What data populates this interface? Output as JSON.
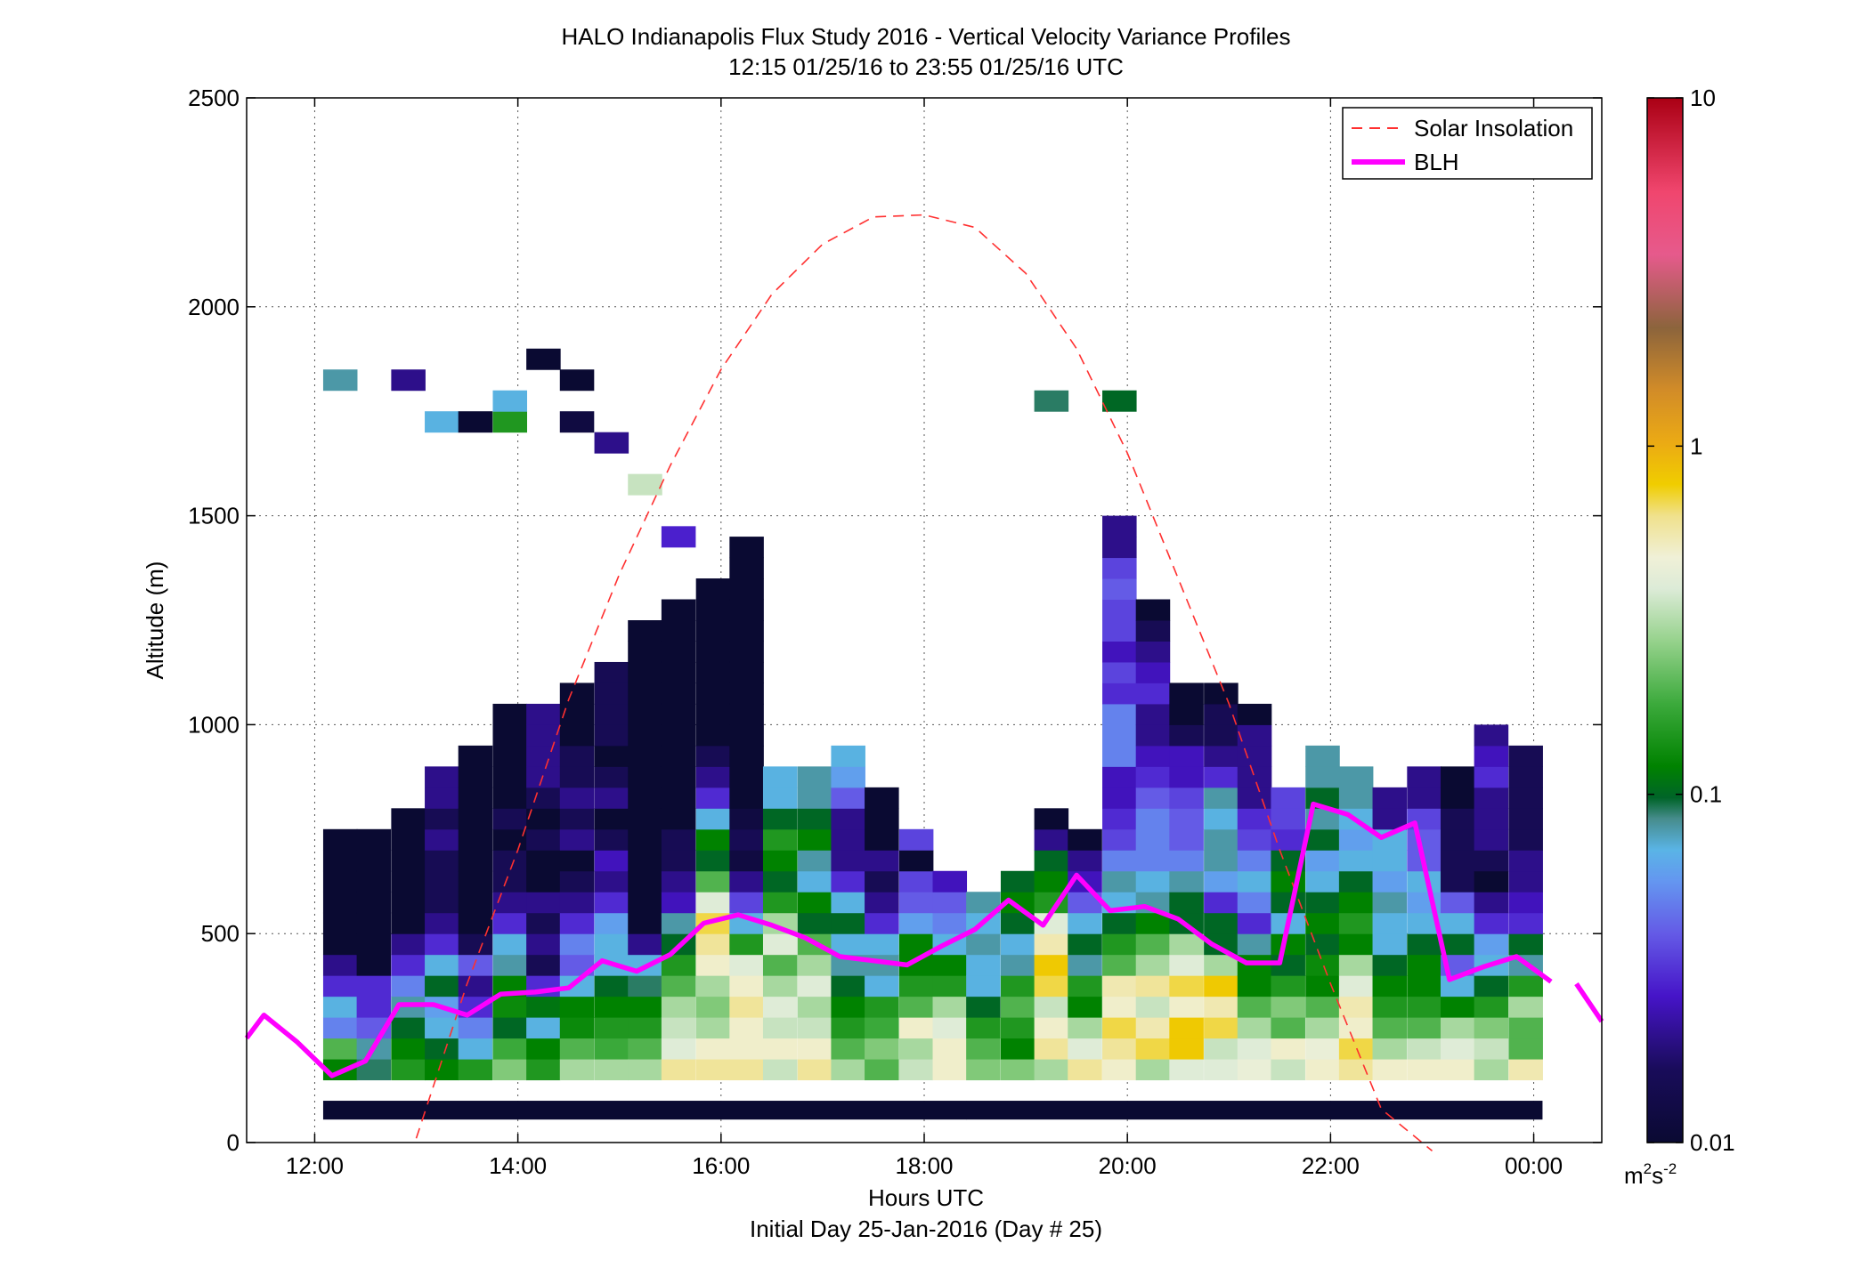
{
  "chart_data": {
    "type": "heatmap",
    "title": "HALO Indianapolis Flux Study 2016 - Vertical Velocity Variance Profiles",
    "subtitle": "12:15 01/25/16 to 23:55 01/25/16  UTC",
    "xlabel": "Hours UTC",
    "xlabel2": "Initial Day 25-Jan-2016 (Day # 25)",
    "ylabel": "Altitude (m)",
    "colorbar_unit": "m²s⁻²",
    "colorbar_unit_base": "m",
    "colorbar_unit_exp1": "2",
    "colorbar_unit_mid": "s",
    "colorbar_unit_exp2": "-2",
    "xlim": [
      11.33,
      24.67
    ],
    "ylim": [
      0,
      2500
    ],
    "xticks": [
      12,
      14,
      16,
      18,
      20,
      22,
      24
    ],
    "xtick_labels": [
      "12:00",
      "14:00",
      "16:00",
      "18:00",
      "20:00",
      "22:00",
      "00:00"
    ],
    "yticks": [
      0,
      500,
      1000,
      1500,
      2000,
      2500
    ],
    "ytick_labels": [
      "0",
      "500",
      "1000",
      "1500",
      "2000",
      "2500"
    ],
    "color_scale": "log",
    "clim": [
      0.01,
      10
    ],
    "cticks": [
      0.01,
      0.1,
      1,
      10
    ],
    "ctick_labels": [
      "0.01",
      "0.1",
      "1",
      "10"
    ],
    "grid": true,
    "legend_position": "top-right",
    "legend": [
      "Solar Insolation",
      "BLH"
    ],
    "bin_width_hours": 0.3333,
    "bin_height_m": 50,
    "columns": [
      {
        "t": 12.25,
        "z0": 150,
        "v": [
          0.12,
          0.2,
          0.05,
          0.07,
          0.03,
          0.02,
          0.01,
          0.01,
          0.01,
          0.01,
          0.01,
          0.01
        ]
      },
      {
        "t": 12.58,
        "z0": 150,
        "v": [
          0.09,
          0.08,
          0.04,
          0.03,
          0.03,
          0.01,
          0.01,
          0.01,
          0.01,
          0.01,
          0.01,
          0.01
        ]
      },
      {
        "t": 12.92,
        "z0": 150,
        "v": [
          0.15,
          0.12,
          0.1,
          0.08,
          0.05,
          0.03,
          0.02,
          0.01,
          0.01,
          0.01,
          0.01,
          0.01,
          0.01
        ]
      },
      {
        "t": 13.25,
        "z0": 150,
        "v": [
          0.12,
          0.1,
          0.07,
          0.06,
          0.1,
          0.07,
          0.03,
          0.02,
          0.015,
          0.015,
          0.015,
          0.02,
          0.015,
          0.02,
          0.02
        ]
      },
      {
        "t": 13.58,
        "z0": 150,
        "v": [
          0.15,
          0.07,
          0.05,
          0.03,
          0.02,
          0.04,
          0.015,
          0.01,
          0.01,
          0.01,
          0.01,
          0.01,
          0.01,
          0.01,
          0.01,
          0.01
        ]
      },
      {
        "t": 13.92,
        "z0": 150,
        "v": [
          0.25,
          0.18,
          0.1,
          0.13,
          0.12,
          0.08,
          0.07,
          0.03,
          0.02,
          0.015,
          0.015,
          0.01,
          0.015,
          0.01,
          0.01,
          0.01,
          0.01,
          0.01
        ]
      },
      {
        "t": 14.25,
        "z0": 150,
        "v": [
          0.15,
          0.12,
          0.07,
          0.11,
          0.03,
          0.015,
          0.02,
          0.015,
          0.02,
          0.01,
          0.01,
          0.015,
          0.01,
          0.015,
          0.02,
          0.02,
          0.02,
          0.02
        ]
      },
      {
        "t": 14.58,
        "z0": 150,
        "v": [
          0.3,
          0.2,
          0.13,
          0.12,
          0.07,
          0.04,
          0.05,
          0.03,
          0.02,
          0.015,
          0.01,
          0.02,
          0.015,
          0.02,
          0.015,
          0.015,
          0.01,
          0.01,
          0.01
        ]
      },
      {
        "t": 14.92,
        "z0": 150,
        "v": [
          0.3,
          0.18,
          0.15,
          0.12,
          0.1,
          0.07,
          0.07,
          0.06,
          0.03,
          0.02,
          0.025,
          0.015,
          0.01,
          0.02,
          0.015,
          0.01,
          0.015,
          0.015,
          0.015,
          0.015
        ]
      },
      {
        "t": 15.25,
        "z0": 150,
        "v": [
          0.3,
          0.2,
          0.15,
          0.12,
          0.09,
          0.07,
          0.02,
          0.01,
          0.01,
          0.01,
          0.01,
          0.01,
          0.01,
          0.01,
          0.01,
          0.01,
          0.01,
          0.01,
          0.01,
          0.01,
          0.01,
          0.01
        ]
      },
      {
        "t": 15.58,
        "z0": 150,
        "v": [
          0.6,
          0.4,
          0.35,
          0.3,
          0.2,
          0.15,
          0.1,
          0.08,
          0.025,
          0.02,
          0.015,
          0.015,
          0.01,
          0.01,
          0.01,
          0.01,
          0.01,
          0.01,
          0.01,
          0.01,
          0.01,
          0.01,
          0.01
        ]
      },
      {
        "t": 15.92,
        "z0": 150,
        "v": [
          0.6,
          0.5,
          0.3,
          0.25,
          0.3,
          0.5,
          0.6,
          0.7,
          0.4,
          0.2,
          0.1,
          0.12,
          0.07,
          0.03,
          0.02,
          0.015,
          0.01,
          0.01,
          0.01,
          0.01,
          0.01,
          0.01,
          0.01,
          0.01
        ]
      },
      {
        "t": 16.25,
        "z0": 150,
        "v": [
          0.6,
          0.5,
          0.5,
          0.6,
          0.5,
          0.4,
          0.15,
          0.07,
          0.035,
          0.02,
          0.012,
          0.015,
          0.012,
          0.01,
          0.01,
          0.01,
          0.01,
          0.01,
          0.01,
          0.01,
          0.01,
          0.01,
          0.01,
          0.01,
          0.01,
          0.01
        ]
      },
      {
        "t": 16.58,
        "z0": 150,
        "v": [
          0.35,
          0.5,
          0.35,
          0.4,
          0.3,
          0.2,
          0.4,
          0.3,
          0.15,
          0.1,
          0.12,
          0.15,
          0.1,
          0.07,
          0.07
        ]
      },
      {
        "t": 16.92,
        "z0": 150,
        "v": [
          0.6,
          0.5,
          0.35,
          0.3,
          0.4,
          0.3,
          0.2,
          0.1,
          0.12,
          0.07,
          0.08,
          0.12,
          0.1,
          0.08,
          0.08
        ]
      },
      {
        "t": 17.25,
        "z0": 150,
        "v": [
          0.3,
          0.2,
          0.15,
          0.12,
          0.1,
          0.08,
          0.07,
          0.1,
          0.07,
          0.03,
          0.02,
          0.02,
          0.02,
          0.04,
          0.06,
          0.07
        ]
      },
      {
        "t": 17.58,
        "z0": 150,
        "v": [
          0.2,
          0.25,
          0.18,
          0.15,
          0.07,
          0.08,
          0.07,
          0.03,
          0.02,
          0.015,
          0.02,
          0.01,
          0.01,
          0.01
        ]
      },
      {
        "t": 17.92,
        "z0": 150,
        "v": [
          0.35,
          0.3,
          0.5,
          0.2,
          0.15,
          0.12,
          0.12,
          0.06,
          0.04,
          0.035,
          0.01,
          0.035
        ]
      },
      {
        "t": 18.25,
        "z0": 150,
        "v": [
          0.5,
          0.5,
          0.4,
          0.3,
          0.15,
          0.12,
          0.07,
          0.05,
          0.04,
          0.025
        ]
      },
      {
        "t": 18.58,
        "z0": 150,
        "v": [
          0.25,
          0.2,
          0.15,
          0.1,
          0.07,
          0.07,
          0.08,
          0.07,
          0.08
        ]
      },
      {
        "t": 18.92,
        "z0": 150,
        "v": [
          0.25,
          0.12,
          0.15,
          0.2,
          0.15,
          0.08,
          0.07,
          0.1,
          0.12,
          0.1
        ]
      },
      {
        "t": 19.25,
        "z0": 150,
        "v": [
          0.3,
          0.6,
          0.5,
          0.35,
          0.7,
          0.8,
          0.55,
          0.4,
          0.15,
          0.12,
          0.1,
          0.02,
          0.01
        ]
      },
      {
        "t": 19.58,
        "z0": 150,
        "v": [
          0.6,
          0.4,
          0.3,
          0.12,
          0.15,
          0.08,
          0.1,
          0.07,
          0.04,
          0.025,
          0.02,
          0.01
        ]
      },
      {
        "t": 19.92,
        "z0": 150,
        "v": [
          0.5,
          0.6,
          0.7,
          0.5,
          0.55,
          0.2,
          0.15,
          0.1,
          0.07,
          0.08,
          0.05,
          0.035,
          0.03,
          0.025,
          0.025,
          0.05,
          0.05,
          0.05,
          0.03,
          0.035,
          0.025,
          0.035,
          0.035,
          0.04,
          0.035,
          0.02,
          0.02
        ]
      },
      {
        "t": 20.25,
        "z0": 150,
        "v": [
          0.3,
          0.7,
          0.55,
          0.35,
          0.6,
          0.3,
          0.2,
          0.12,
          0.08,
          0.07,
          0.05,
          0.05,
          0.05,
          0.04,
          0.03,
          0.025,
          0.02,
          0.02,
          0.03,
          0.025,
          0.02,
          0.015,
          0.01
        ]
      },
      {
        "t": 20.58,
        "z0": 150,
        "v": [
          0.4,
          0.8,
          0.8,
          0.5,
          0.7,
          0.4,
          0.3,
          0.1,
          0.1,
          0.08,
          0.05,
          0.04,
          0.04,
          0.035,
          0.025,
          0.025,
          0.015,
          0.01,
          0.01
        ]
      },
      {
        "t": 20.92,
        "z0": 150,
        "v": [
          0.4,
          0.35,
          0.7,
          0.55,
          0.8,
          0.3,
          0.1,
          0.1,
          0.03,
          0.06,
          0.08,
          0.08,
          0.07,
          0.08,
          0.03,
          0.02,
          0.015,
          0.015,
          0.01
        ]
      },
      {
        "t": 21.25,
        "z0": 150,
        "v": [
          0.45,
          0.4,
          0.3,
          0.2,
          0.12,
          0.12,
          0.08,
          0.03,
          0.05,
          0.07,
          0.05,
          0.035,
          0.03,
          0.02,
          0.02,
          0.02,
          0.02,
          0.01
        ]
      },
      {
        "t": 21.58,
        "z0": 150,
        "v": [
          0.35,
          0.5,
          0.2,
          0.25,
          0.15,
          0.1,
          0.12,
          0.07,
          0.1,
          0.12,
          0.1,
          0.03,
          0.035,
          0.035
        ]
      },
      {
        "t": 21.92,
        "z0": 150,
        "v": [
          0.5,
          0.45,
          0.3,
          0.2,
          0.12,
          0.13,
          0.1,
          0.12,
          0.1,
          0.07,
          0.06,
          0.1,
          0.08,
          0.1,
          0.08,
          0.08
        ]
      },
      {
        "t": 22.25,
        "z0": 150,
        "v": [
          0.6,
          0.7,
          0.5,
          0.55,
          0.4,
          0.3,
          0.12,
          0.15,
          0.12,
          0.1,
          0.07,
          0.06,
          0.07,
          0.08,
          0.08
        ]
      },
      {
        "t": 22.58,
        "z0": 150,
        "v": [
          0.5,
          0.3,
          0.2,
          0.15,
          0.12,
          0.1,
          0.07,
          0.07,
          0.08,
          0.06,
          0.07,
          0.07,
          0.02,
          0.02
        ]
      },
      {
        "t": 22.92,
        "z0": 150,
        "v": [
          0.5,
          0.35,
          0.2,
          0.15,
          0.12,
          0.12,
          0.1,
          0.07,
          0.06,
          0.07,
          0.04,
          0.04,
          0.035,
          0.02,
          0.02
        ]
      },
      {
        "t": 23.25,
        "z0": 150,
        "v": [
          0.5,
          0.4,
          0.3,
          0.12,
          0.07,
          0.04,
          0.1,
          0.07,
          0.04,
          0.015,
          0.015,
          0.015,
          0.015,
          0.01,
          0.01
        ]
      },
      {
        "t": 23.58,
        "z0": 150,
        "v": [
          0.3,
          0.35,
          0.25,
          0.15,
          0.1,
          0.07,
          0.06,
          0.03,
          0.02,
          0.01,
          0.015,
          0.02,
          0.02,
          0.02,
          0.03,
          0.025,
          0.02
        ]
      },
      {
        "t": 23.92,
        "z0": 150,
        "v": [
          0.55,
          0.2,
          0.2,
          0.3,
          0.15,
          0.08,
          0.1,
          0.03,
          0.025,
          0.02,
          0.02,
          0.015,
          0.015,
          0.015,
          0.015,
          0.015
        ]
      }
    ],
    "isolated_cells": [
      {
        "t": 12.25,
        "z": 1825,
        "v": 0.08
      },
      {
        "t": 12.92,
        "z": 1825,
        "v": 0.02
      },
      {
        "t": 13.25,
        "z": 1725,
        "v": 0.07
      },
      {
        "t": 13.58,
        "z": 1725,
        "v": 0.01
      },
      {
        "t": 13.92,
        "z": 1725,
        "v": 0.15
      },
      {
        "t": 13.92,
        "z": 1775,
        "v": 0.07
      },
      {
        "t": 14.25,
        "z": 1875,
        "v": 0.01
      },
      {
        "t": 14.58,
        "z": 1825,
        "v": 0.01
      },
      {
        "t": 14.58,
        "z": 1725,
        "v": 0.012
      },
      {
        "t": 14.92,
        "z": 1675,
        "v": 0.02
      },
      {
        "t": 15.25,
        "z": 1575,
        "v": 0.35
      },
      {
        "t": 15.58,
        "z": 1450,
        "v": 0.028
      },
      {
        "t": 19.25,
        "z": 1775,
        "v": 0.09
      },
      {
        "t": 19.92,
        "z": 1775,
        "v": 0.1
      }
    ],
    "bottom_gate_segments": [
      [
        12.25,
        18.25
      ],
      [
        18.58,
        23.92
      ]
    ],
    "series": [
      {
        "name": "Solar Insolation",
        "x": [
          13.0,
          13.5,
          14.0,
          14.5,
          15.0,
          15.5,
          16.0,
          16.5,
          17.0,
          17.5,
          18.0,
          18.5,
          19.0,
          19.5,
          20.0,
          20.5,
          21.0,
          21.5,
          22.0,
          22.5,
          23.0
        ],
        "y": [
          10,
          380,
          700,
          1060,
          1360,
          1620,
          1850,
          2030,
          2150,
          2215,
          2220,
          2190,
          2080,
          1900,
          1650,
          1350,
          1050,
          700,
          380,
          80,
          -20
        ]
      },
      {
        "name": "BLH",
        "x": [
          11.33,
          11.5,
          11.83,
          12.17,
          12.5,
          12.83,
          13.17,
          13.5,
          13.83,
          14.17,
          14.5,
          14.83,
          15.17,
          15.5,
          15.83,
          16.17,
          16.5,
          16.83,
          17.17,
          17.5,
          17.83,
          18.17,
          18.5,
          18.83,
          19.17,
          19.5,
          19.83,
          20.17,
          20.5,
          20.83,
          21.17,
          21.5,
          21.83,
          22.17,
          22.5,
          22.83,
          23.17,
          23.5,
          23.83,
          24.17
        ],
        "y": [
          250,
          305,
          240,
          160,
          195,
          330,
          330,
          305,
          355,
          360,
          370,
          435,
          410,
          450,
          525,
          545,
          520,
          490,
          445,
          435,
          425,
          470,
          510,
          580,
          520,
          640,
          555,
          565,
          535,
          475,
          430,
          430,
          810,
          785,
          730,
          765,
          390,
          420,
          445,
          385
        ]
      },
      {
        "name": "BLH",
        "x": [
          24.42,
          24.67
        ],
        "y": [
          380,
          290
        ]
      }
    ]
  }
}
